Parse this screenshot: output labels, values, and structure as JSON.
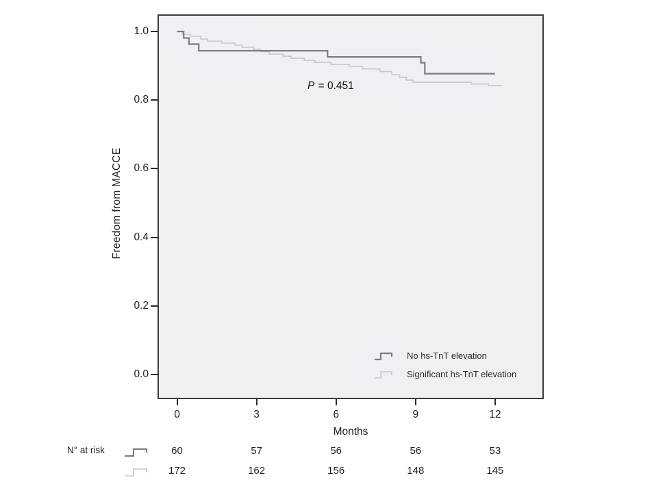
{
  "chart_data": {
    "type": "line",
    "subtype": "kaplan-meier-step",
    "title": "",
    "xlabel": "Months",
    "ylabel": "Freedom from MACCE",
    "xlim": [
      0,
      13.8
    ],
    "ylim": [
      0.0,
      1.0
    ],
    "x_ticks": [
      0,
      3,
      6,
      9,
      12
    ],
    "y_ticks": [
      1.0,
      0.8,
      0.6,
      0.4,
      0.2,
      0.0
    ],
    "grid": false,
    "legend_position": "inside-bottom-right",
    "annotation": {
      "italic": "P",
      "text": " = 0.451"
    },
    "plot_bg": "#efeff4",
    "frame_color": "#3c3c3c",
    "series": [
      {
        "name": "No hs-TnT elevation",
        "color": "#7c7c86",
        "line_width": 2.2,
        "points": [
          [
            0,
            1.0
          ],
          [
            0.25,
            0.981
          ],
          [
            0.45,
            0.963
          ],
          [
            0.82,
            0.944
          ],
          [
            5.68,
            0.926
          ],
          [
            9.2,
            0.909
          ],
          [
            9.35,
            0.877
          ],
          [
            12.0,
            0.877
          ]
        ]
      },
      {
        "name": "Significant hs-TnT elevation",
        "color": "#c7c7cf",
        "line_width": 1.6,
        "points": [
          [
            0,
            1.0
          ],
          [
            0.2,
            0.992
          ],
          [
            0.5,
            0.986
          ],
          [
            0.9,
            0.978
          ],
          [
            1.15,
            0.972
          ],
          [
            1.68,
            0.966
          ],
          [
            2.19,
            0.96
          ],
          [
            2.45,
            0.954
          ],
          [
            2.89,
            0.948
          ],
          [
            3.15,
            0.941
          ],
          [
            3.48,
            0.934
          ],
          [
            4.0,
            0.928
          ],
          [
            4.31,
            0.922
          ],
          [
            4.8,
            0.916
          ],
          [
            5.2,
            0.91
          ],
          [
            5.81,
            0.904
          ],
          [
            6.5,
            0.898
          ],
          [
            7.0,
            0.891
          ],
          [
            7.66,
            0.883
          ],
          [
            8.1,
            0.874
          ],
          [
            8.4,
            0.866
          ],
          [
            8.65,
            0.858
          ],
          [
            8.9,
            0.852
          ],
          [
            11.1,
            0.847
          ],
          [
            11.75,
            0.842
          ],
          [
            12.25,
            0.842
          ]
        ]
      }
    ],
    "risk_table": {
      "label": "N° at risk",
      "time_points": [
        0,
        3,
        6,
        9,
        12
      ],
      "rows": [
        {
          "series": "No hs-TnT elevation",
          "counts": [
            60,
            57,
            56,
            56,
            53
          ]
        },
        {
          "series": "Significant hs-TnT elevation",
          "counts": [
            172,
            162,
            156,
            148,
            145
          ]
        }
      ]
    }
  }
}
